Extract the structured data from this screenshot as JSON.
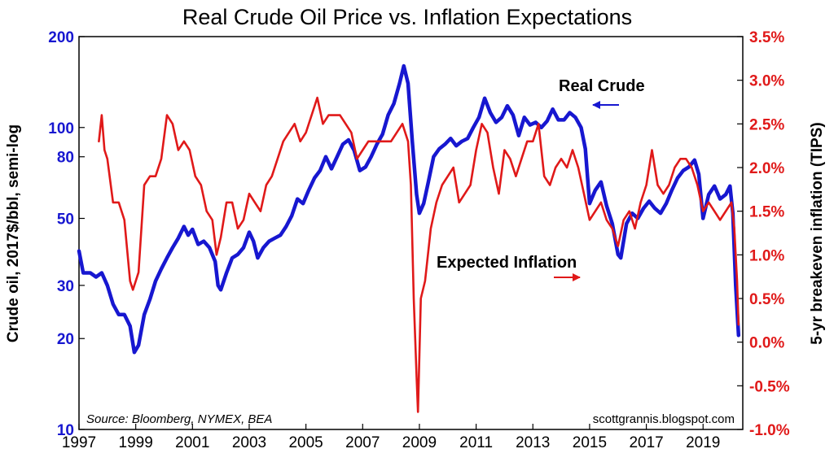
{
  "colors": {
    "crude": "#1717d0",
    "inflation": "#e01919",
    "axis": "#000000"
  },
  "chart_data": {
    "type": "line",
    "title": "Real Crude Oil Price vs. Inflation Expectations",
    "x_range": [
      1997,
      2020.4
    ],
    "x_ticks": [
      "1997",
      "1999",
      "2001",
      "2003",
      "2005",
      "2007",
      "2009",
      "2011",
      "2013",
      "2015",
      "2017",
      "2019"
    ],
    "left_axis": {
      "label": "Crude oil, 2017$/bbl, semi-log",
      "scale": "log",
      "range": [
        10,
        200
      ],
      "ticks": [
        {
          "value": 10,
          "label": "10"
        },
        {
          "value": 20,
          "label": "20"
        },
        {
          "value": 30,
          "label": "30"
        },
        {
          "value": 50,
          "label": "50"
        },
        {
          "value": 80,
          "label": "80"
        },
        {
          "value": 100,
          "label": "100"
        },
        {
          "value": 200,
          "label": "200"
        }
      ]
    },
    "right_axis": {
      "label": "5-yr breakeven inflation (TIPS)",
      "scale": "linear",
      "range": [
        -1.0,
        3.5
      ],
      "ticks": [
        {
          "value": 3.5,
          "label": "3.5%"
        },
        {
          "value": 3.0,
          "label": "3.0%"
        },
        {
          "value": 2.5,
          "label": "2.5%"
        },
        {
          "value": 2.0,
          "label": "2.0%"
        },
        {
          "value": 1.5,
          "label": "1.5%"
        },
        {
          "value": 1.0,
          "label": "1.0%"
        },
        {
          "value": 0.5,
          "label": "0.5%"
        },
        {
          "value": 0.0,
          "label": "0.0%"
        },
        {
          "value": -0.5,
          "label": "-0.5%"
        },
        {
          "value": -1.0,
          "label": "-1.0%"
        }
      ]
    },
    "series": [
      {
        "name": "Real Crude",
        "axis": "left",
        "points": [
          [
            1997.0,
            39
          ],
          [
            1997.15,
            33
          ],
          [
            1997.4,
            33
          ],
          [
            1997.6,
            32
          ],
          [
            1997.8,
            33
          ],
          [
            1998.0,
            30
          ],
          [
            1998.2,
            26
          ],
          [
            1998.4,
            24
          ],
          [
            1998.6,
            24
          ],
          [
            1998.8,
            22
          ],
          [
            1998.95,
            18
          ],
          [
            1999.1,
            19
          ],
          [
            1999.3,
            24
          ],
          [
            1999.5,
            27
          ],
          [
            1999.7,
            31
          ],
          [
            1999.9,
            34
          ],
          [
            2000.1,
            37
          ],
          [
            2000.3,
            40
          ],
          [
            2000.5,
            43
          ],
          [
            2000.7,
            47
          ],
          [
            2000.85,
            44
          ],
          [
            2001.0,
            46
          ],
          [
            2001.2,
            41
          ],
          [
            2001.4,
            42
          ],
          [
            2001.6,
            40
          ],
          [
            2001.8,
            36
          ],
          [
            2001.9,
            30
          ],
          [
            2002.0,
            29
          ],
          [
            2002.2,
            33
          ],
          [
            2002.4,
            37
          ],
          [
            2002.6,
            38
          ],
          [
            2002.8,
            40
          ],
          [
            2003.0,
            45
          ],
          [
            2003.15,
            42
          ],
          [
            2003.3,
            37
          ],
          [
            2003.5,
            40
          ],
          [
            2003.7,
            42
          ],
          [
            2003.9,
            43
          ],
          [
            2004.1,
            44
          ],
          [
            2004.3,
            47
          ],
          [
            2004.5,
            51
          ],
          [
            2004.7,
            58
          ],
          [
            2004.9,
            56
          ],
          [
            2005.1,
            62
          ],
          [
            2005.3,
            68
          ],
          [
            2005.5,
            72
          ],
          [
            2005.7,
            80
          ],
          [
            2005.9,
            73
          ],
          [
            2006.1,
            80
          ],
          [
            2006.3,
            88
          ],
          [
            2006.5,
            91
          ],
          [
            2006.7,
            84
          ],
          [
            2006.9,
            72
          ],
          [
            2007.1,
            74
          ],
          [
            2007.3,
            80
          ],
          [
            2007.5,
            88
          ],
          [
            2007.7,
            95
          ],
          [
            2007.9,
            110
          ],
          [
            2008.1,
            120
          ],
          [
            2008.3,
            140
          ],
          [
            2008.45,
            160
          ],
          [
            2008.6,
            140
          ],
          [
            2008.75,
            90
          ],
          [
            2008.9,
            60
          ],
          [
            2009.0,
            52
          ],
          [
            2009.15,
            56
          ],
          [
            2009.3,
            65
          ],
          [
            2009.5,
            80
          ],
          [
            2009.7,
            85
          ],
          [
            2009.9,
            88
          ],
          [
            2010.1,
            92
          ],
          [
            2010.3,
            87
          ],
          [
            2010.5,
            90
          ],
          [
            2010.7,
            92
          ],
          [
            2010.9,
            100
          ],
          [
            2011.1,
            108
          ],
          [
            2011.3,
            125
          ],
          [
            2011.5,
            112
          ],
          [
            2011.7,
            104
          ],
          [
            2011.9,
            108
          ],
          [
            2012.1,
            118
          ],
          [
            2012.3,
            110
          ],
          [
            2012.5,
            94
          ],
          [
            2012.7,
            108
          ],
          [
            2012.9,
            102
          ],
          [
            2013.1,
            104
          ],
          [
            2013.3,
            100
          ],
          [
            2013.5,
            105
          ],
          [
            2013.7,
            115
          ],
          [
            2013.9,
            106
          ],
          [
            2014.1,
            106
          ],
          [
            2014.3,
            112
          ],
          [
            2014.5,
            108
          ],
          [
            2014.7,
            100
          ],
          [
            2014.85,
            85
          ],
          [
            2015.0,
            56
          ],
          [
            2015.2,
            62
          ],
          [
            2015.4,
            66
          ],
          [
            2015.6,
            55
          ],
          [
            2015.8,
            48
          ],
          [
            2016.0,
            38
          ],
          [
            2016.1,
            37
          ],
          [
            2016.3,
            48
          ],
          [
            2016.5,
            52
          ],
          [
            2016.7,
            50
          ],
          [
            2016.9,
            54
          ],
          [
            2017.1,
            57
          ],
          [
            2017.3,
            54
          ],
          [
            2017.5,
            52
          ],
          [
            2017.7,
            56
          ],
          [
            2017.9,
            62
          ],
          [
            2018.1,
            68
          ],
          [
            2018.3,
            72
          ],
          [
            2018.5,
            74
          ],
          [
            2018.7,
            78
          ],
          [
            2018.85,
            70
          ],
          [
            2019.0,
            50
          ],
          [
            2019.2,
            60
          ],
          [
            2019.4,
            64
          ],
          [
            2019.6,
            58
          ],
          [
            2019.8,
            60
          ],
          [
            2019.95,
            64
          ],
          [
            2020.05,
            52
          ],
          [
            2020.15,
            30
          ],
          [
            2020.25,
            20.5
          ]
        ]
      },
      {
        "name": "Expected Inflation",
        "axis": "right",
        "points": [
          [
            1997.7,
            2.3
          ],
          [
            1997.8,
            2.6
          ],
          [
            1997.9,
            2.2
          ],
          [
            1998.0,
            2.1
          ],
          [
            1998.2,
            1.6
          ],
          [
            1998.4,
            1.6
          ],
          [
            1998.6,
            1.4
          ],
          [
            1998.8,
            0.7
          ],
          [
            1998.9,
            0.6
          ],
          [
            1999.0,
            0.7
          ],
          [
            1999.1,
            0.8
          ],
          [
            1999.3,
            1.8
          ],
          [
            1999.5,
            1.9
          ],
          [
            1999.7,
            1.9
          ],
          [
            1999.9,
            2.1
          ],
          [
            2000.1,
            2.6
          ],
          [
            2000.3,
            2.5
          ],
          [
            2000.5,
            2.2
          ],
          [
            2000.7,
            2.3
          ],
          [
            2000.9,
            2.2
          ],
          [
            2001.1,
            1.9
          ],
          [
            2001.3,
            1.8
          ],
          [
            2001.5,
            1.5
          ],
          [
            2001.7,
            1.4
          ],
          [
            2001.85,
            1.0
          ],
          [
            2002.0,
            1.2
          ],
          [
            2002.2,
            1.6
          ],
          [
            2002.4,
            1.6
          ],
          [
            2002.6,
            1.3
          ],
          [
            2002.8,
            1.4
          ],
          [
            2003.0,
            1.7
          ],
          [
            2003.2,
            1.6
          ],
          [
            2003.4,
            1.5
          ],
          [
            2003.6,
            1.8
          ],
          [
            2003.8,
            1.9
          ],
          [
            2004.0,
            2.1
          ],
          [
            2004.2,
            2.3
          ],
          [
            2004.4,
            2.4
          ],
          [
            2004.6,
            2.5
          ],
          [
            2004.8,
            2.3
          ],
          [
            2005.0,
            2.4
          ],
          [
            2005.2,
            2.6
          ],
          [
            2005.4,
            2.8
          ],
          [
            2005.6,
            2.5
          ],
          [
            2005.8,
            2.6
          ],
          [
            2006.0,
            2.6
          ],
          [
            2006.2,
            2.6
          ],
          [
            2006.4,
            2.5
          ],
          [
            2006.6,
            2.4
          ],
          [
            2006.8,
            2.1
          ],
          [
            2007.0,
            2.2
          ],
          [
            2007.2,
            2.3
          ],
          [
            2007.4,
            2.3
          ],
          [
            2007.6,
            2.3
          ],
          [
            2007.8,
            2.3
          ],
          [
            2008.0,
            2.3
          ],
          [
            2008.2,
            2.4
          ],
          [
            2008.4,
            2.5
          ],
          [
            2008.6,
            2.3
          ],
          [
            2008.7,
            1.8
          ],
          [
            2008.8,
            0.5
          ],
          [
            2008.9,
            -0.4
          ],
          [
            2008.95,
            -0.8
          ],
          [
            2009.05,
            0.5
          ],
          [
            2009.2,
            0.7
          ],
          [
            2009.4,
            1.3
          ],
          [
            2009.6,
            1.6
          ],
          [
            2009.8,
            1.8
          ],
          [
            2010.0,
            1.9
          ],
          [
            2010.2,
            2.0
          ],
          [
            2010.4,
            1.6
          ],
          [
            2010.6,
            1.7
          ],
          [
            2010.8,
            1.8
          ],
          [
            2011.0,
            2.2
          ],
          [
            2011.2,
            2.5
          ],
          [
            2011.4,
            2.4
          ],
          [
            2011.6,
            2.0
          ],
          [
            2011.8,
            1.7
          ],
          [
            2012.0,
            2.2
          ],
          [
            2012.2,
            2.1
          ],
          [
            2012.4,
            1.9
          ],
          [
            2012.6,
            2.1
          ],
          [
            2012.8,
            2.3
          ],
          [
            2013.0,
            2.3
          ],
          [
            2013.2,
            2.5
          ],
          [
            2013.4,
            1.9
          ],
          [
            2013.6,
            1.8
          ],
          [
            2013.8,
            2.0
          ],
          [
            2014.0,
            2.1
          ],
          [
            2014.2,
            2.0
          ],
          [
            2014.4,
            2.2
          ],
          [
            2014.6,
            2.0
          ],
          [
            2014.8,
            1.7
          ],
          [
            2015.0,
            1.4
          ],
          [
            2015.2,
            1.5
          ],
          [
            2015.4,
            1.6
          ],
          [
            2015.6,
            1.4
          ],
          [
            2015.8,
            1.3
          ],
          [
            2016.0,
            1.1
          ],
          [
            2016.2,
            1.4
          ],
          [
            2016.4,
            1.5
          ],
          [
            2016.6,
            1.3
          ],
          [
            2016.8,
            1.6
          ],
          [
            2017.0,
            1.8
          ],
          [
            2017.2,
            2.2
          ],
          [
            2017.4,
            1.8
          ],
          [
            2017.6,
            1.7
          ],
          [
            2017.8,
            1.8
          ],
          [
            2018.0,
            2.0
          ],
          [
            2018.2,
            2.1
          ],
          [
            2018.4,
            2.1
          ],
          [
            2018.6,
            2.0
          ],
          [
            2018.8,
            1.8
          ],
          [
            2019.0,
            1.5
          ],
          [
            2019.2,
            1.6
          ],
          [
            2019.4,
            1.5
          ],
          [
            2019.6,
            1.4
          ],
          [
            2019.8,
            1.5
          ],
          [
            2020.0,
            1.6
          ],
          [
            2020.1,
            1.3
          ],
          [
            2020.2,
            0.7
          ],
          [
            2020.25,
            0.2
          ]
        ]
      }
    ],
    "annotations": [
      {
        "text": "Real Crude",
        "series": "Real Crude",
        "arrow": "left"
      },
      {
        "text": "Expected Inflation",
        "series": "Expected Inflation",
        "arrow": "right"
      }
    ],
    "source": "Source: Bloomberg, NYMEX, BEA",
    "credit": "scottgrannis.blogspot.com"
  }
}
